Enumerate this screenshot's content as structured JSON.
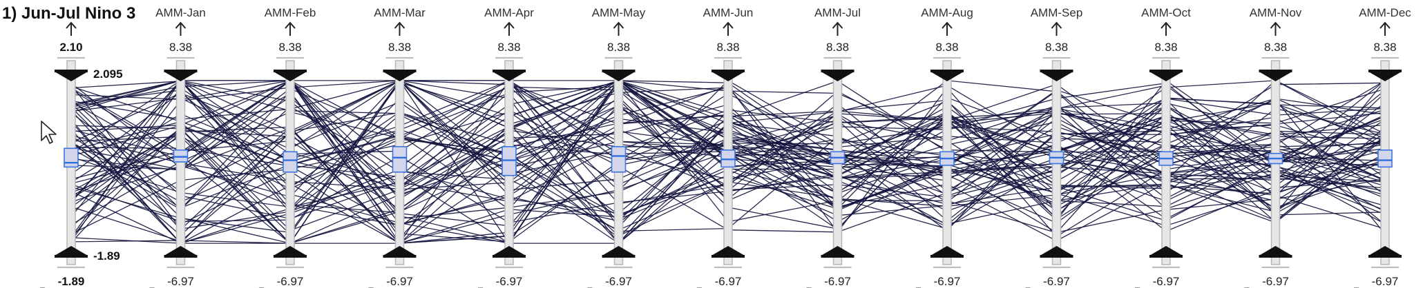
{
  "title": "1) Jun-Jul Nino 3",
  "axes": [
    {
      "name": "",
      "top": "2.10",
      "bottom": "-1.89",
      "range_top": "2.095",
      "range_bottom": "-1.89",
      "box_low": 0.47,
      "box_high": 0.58,
      "median": 0.495
    },
    {
      "name": "AMM-Jan",
      "top": "8.38",
      "bottom": "-6.97",
      "box_low": 0.5,
      "box_high": 0.57,
      "median": 0.53
    },
    {
      "name": "AMM-Feb",
      "top": "8.38",
      "bottom": "-6.97",
      "box_low": 0.44,
      "box_high": 0.56,
      "median": 0.51
    },
    {
      "name": "AMM-Mar",
      "top": "8.38",
      "bottom": "-6.97",
      "box_low": 0.44,
      "box_high": 0.59,
      "median": 0.525
    },
    {
      "name": "AMM-Apr",
      "top": "8.38",
      "bottom": "-6.97",
      "box_low": 0.42,
      "box_high": 0.59,
      "median": 0.51
    },
    {
      "name": "AMM-May",
      "top": "8.38",
      "bottom": "-6.97",
      "box_low": 0.44,
      "box_high": 0.59,
      "median": 0.535
    },
    {
      "name": "AMM-Jun",
      "top": "8.38",
      "bottom": "-6.97",
      "box_low": 0.47,
      "box_high": 0.57,
      "median": 0.515
    },
    {
      "name": "AMM-Jul",
      "top": "8.38",
      "bottom": "-6.97",
      "box_low": 0.49,
      "box_high": 0.56,
      "median": 0.525
    },
    {
      "name": "AMM-Aug",
      "top": "8.38",
      "bottom": "-6.97",
      "box_low": 0.48,
      "box_high": 0.56,
      "median": 0.52
    },
    {
      "name": "AMM-Sep",
      "top": "8.38",
      "bottom": "-6.97",
      "box_low": 0.49,
      "box_high": 0.56,
      "median": 0.525
    },
    {
      "name": "AMM-Oct",
      "top": "8.38",
      "bottom": "-6.97",
      "box_low": 0.48,
      "box_high": 0.56,
      "median": 0.52
    },
    {
      "name": "AMM-Nov",
      "top": "8.38",
      "bottom": "-6.97",
      "box_low": 0.49,
      "box_high": 0.55,
      "median": 0.52
    },
    {
      "name": "AMM-Dec",
      "top": "8.38",
      "bottom": "-6.97",
      "box_low": 0.47,
      "box_high": 0.57,
      "median": 0.51
    }
  ],
  "colors": {
    "line": "#15163f",
    "box_fill": "#d3d5ea",
    "box_stroke": "#3b74e0",
    "axis": "#e6e6e6"
  },
  "icons": {
    "cursor": "mouse-pointer-icon",
    "up_arrow": "up-arrow-icon",
    "handle_top": "slider-handle-down-icon",
    "handle_bottom": "slider-handle-up-icon"
  }
}
